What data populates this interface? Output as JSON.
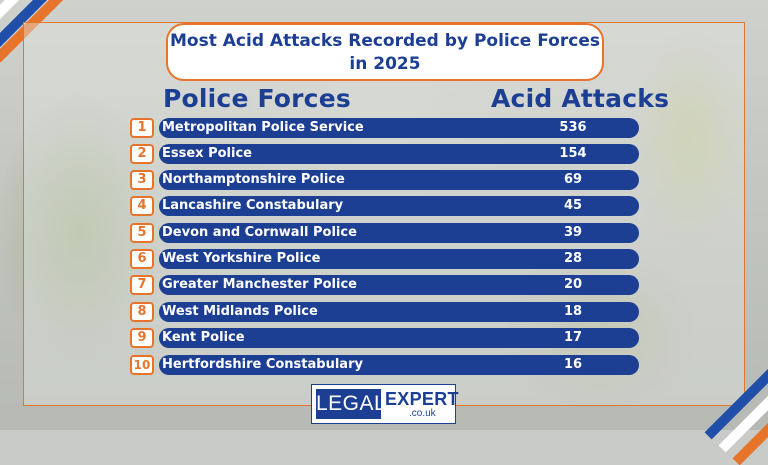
{
  "title": {
    "line1": "Most Acid Attacks Recorded by Police Forces",
    "line2": "in 2025"
  },
  "headers": {
    "forces": "Police Forces",
    "attacks": "Acid Attacks"
  },
  "rows": [
    {
      "rank": "1",
      "force": "Metropolitan Police Service",
      "attacks": "536"
    },
    {
      "rank": "2",
      "force": "Essex Police",
      "attacks": "154"
    },
    {
      "rank": "3",
      "force": "Northamptonshire Police",
      "attacks": "69"
    },
    {
      "rank": "4",
      "force": "Lancashire Constabulary",
      "attacks": "45"
    },
    {
      "rank": "5",
      "force": "Devon and Cornwall Police",
      "attacks": "39"
    },
    {
      "rank": "6",
      "force": "West Yorkshire Police",
      "attacks": "28"
    },
    {
      "rank": "7",
      "force": "Greater Manchester Police",
      "attacks": "20"
    },
    {
      "rank": "8",
      "force": "West Midlands Police",
      "attacks": "18"
    },
    {
      "rank": "9",
      "force": "Kent Police",
      "attacks": "17"
    },
    {
      "rank": "10",
      "force": "Hertfordshire Constabulary",
      "attacks": "16"
    }
  ],
  "logo": {
    "legal": "LEGAL",
    "expert": "EXPERT",
    "domain": ".co.uk"
  },
  "colors": {
    "navy": "#1c3f94",
    "orange": "#e7742b"
  }
}
